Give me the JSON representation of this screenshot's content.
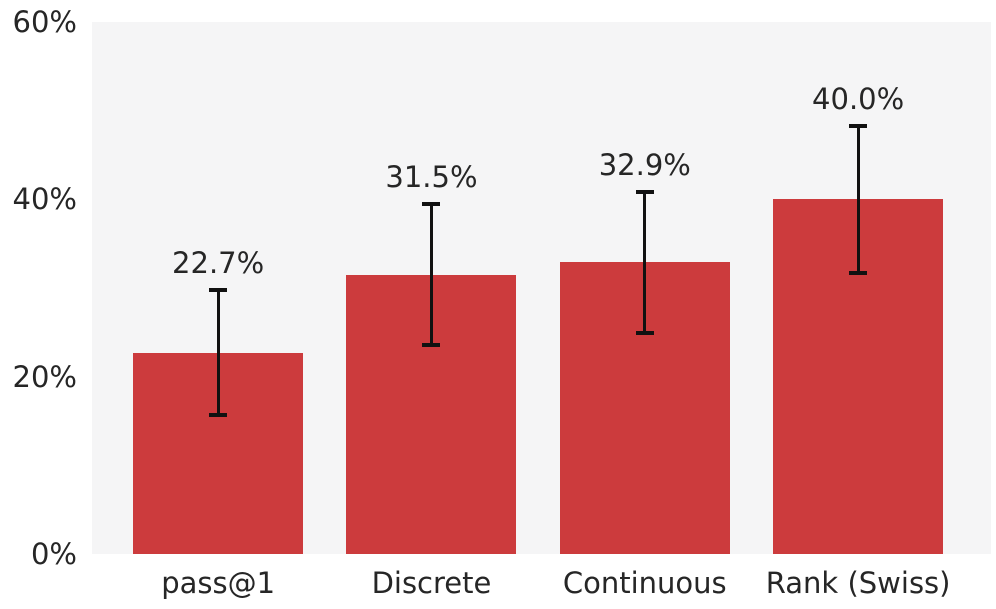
{
  "chart_data": {
    "type": "bar",
    "categories": [
      "pass@1",
      "Discrete",
      "Continuous",
      "Rank (Swiss)"
    ],
    "values": [
      22.7,
      31.5,
      32.9,
      40.0
    ],
    "value_labels": [
      "22.7%",
      "31.5%",
      "32.9%",
      "40.0%"
    ],
    "error_low": [
      15.7,
      23.6,
      24.9,
      31.7
    ],
    "error_high": [
      29.8,
      39.5,
      40.8,
      48.3
    ],
    "title": "",
    "xlabel": "",
    "ylabel": "",
    "ylim": [
      0,
      60
    ],
    "yticks": [
      0,
      20,
      40,
      60
    ],
    "ytick_labels": [
      "0%",
      "20%",
      "40%",
      "60%"
    ],
    "grid": false,
    "legend": null,
    "colors": {
      "bar": "#cc3b3d",
      "errorbar": "#111111",
      "plot_background": "#f5f5f6",
      "page_background": "#ffffff",
      "text": "#262626"
    }
  }
}
